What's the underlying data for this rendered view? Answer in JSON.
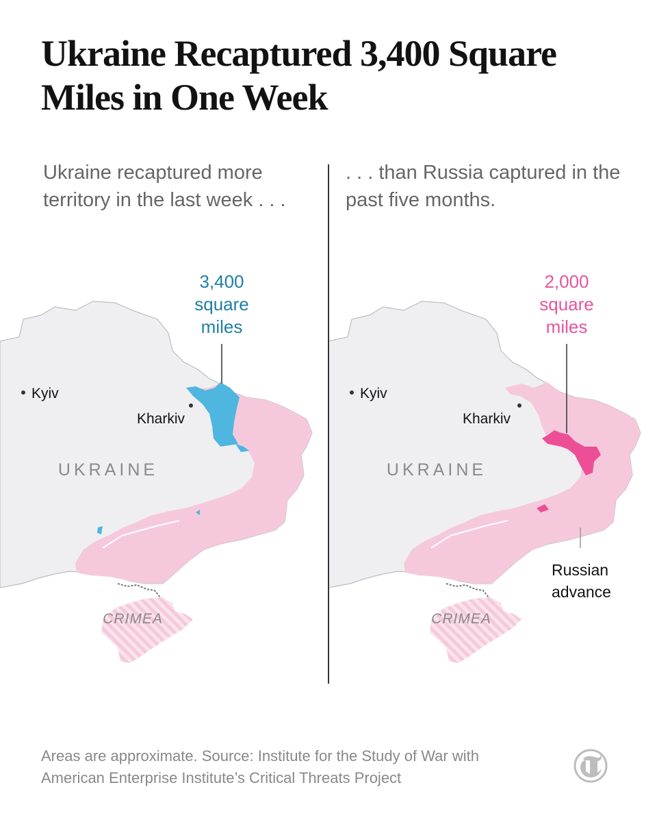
{
  "title": "Ukraine Recaptured 3,400 Square Miles in One Week",
  "panels": [
    {
      "subtitle": "Ukraine recaptured more territory in the last week . . .",
      "callout": {
        "lines": [
          "3,400",
          "square",
          "miles"
        ]
      },
      "labels": {
        "kyiv": "Kyiv",
        "kharkiv": "Kharkiv",
        "country": "UKRAINE",
        "crimea": "CRIMEA"
      }
    },
    {
      "subtitle": ". . . than Russia captured in the past five months.",
      "callout": {
        "lines": [
          "2,000",
          "square",
          "miles"
        ]
      },
      "labels": {
        "kyiv": "Kyiv",
        "kharkiv": "Kharkiv",
        "country": "UKRAINE",
        "crimea": "CRIMEA"
      },
      "annotation": {
        "lines": [
          "Russian",
          "advance"
        ]
      }
    }
  ],
  "source": {
    "note": "Areas are approximate.",
    "text": "Source: Institute for the Study of War with American Enterprise Institute’s Critical Threats Project"
  },
  "colors": {
    "ukraine_land": "#efeff1",
    "border": "#bdbdc2",
    "occupied": "#f5c9db",
    "recaptured": "#4fb6df",
    "russian_advance": "#ec4f96",
    "callout_left": "#1d7fa7",
    "callout_right": "#e6559c"
  },
  "logo": "nyt-logo-icon"
}
